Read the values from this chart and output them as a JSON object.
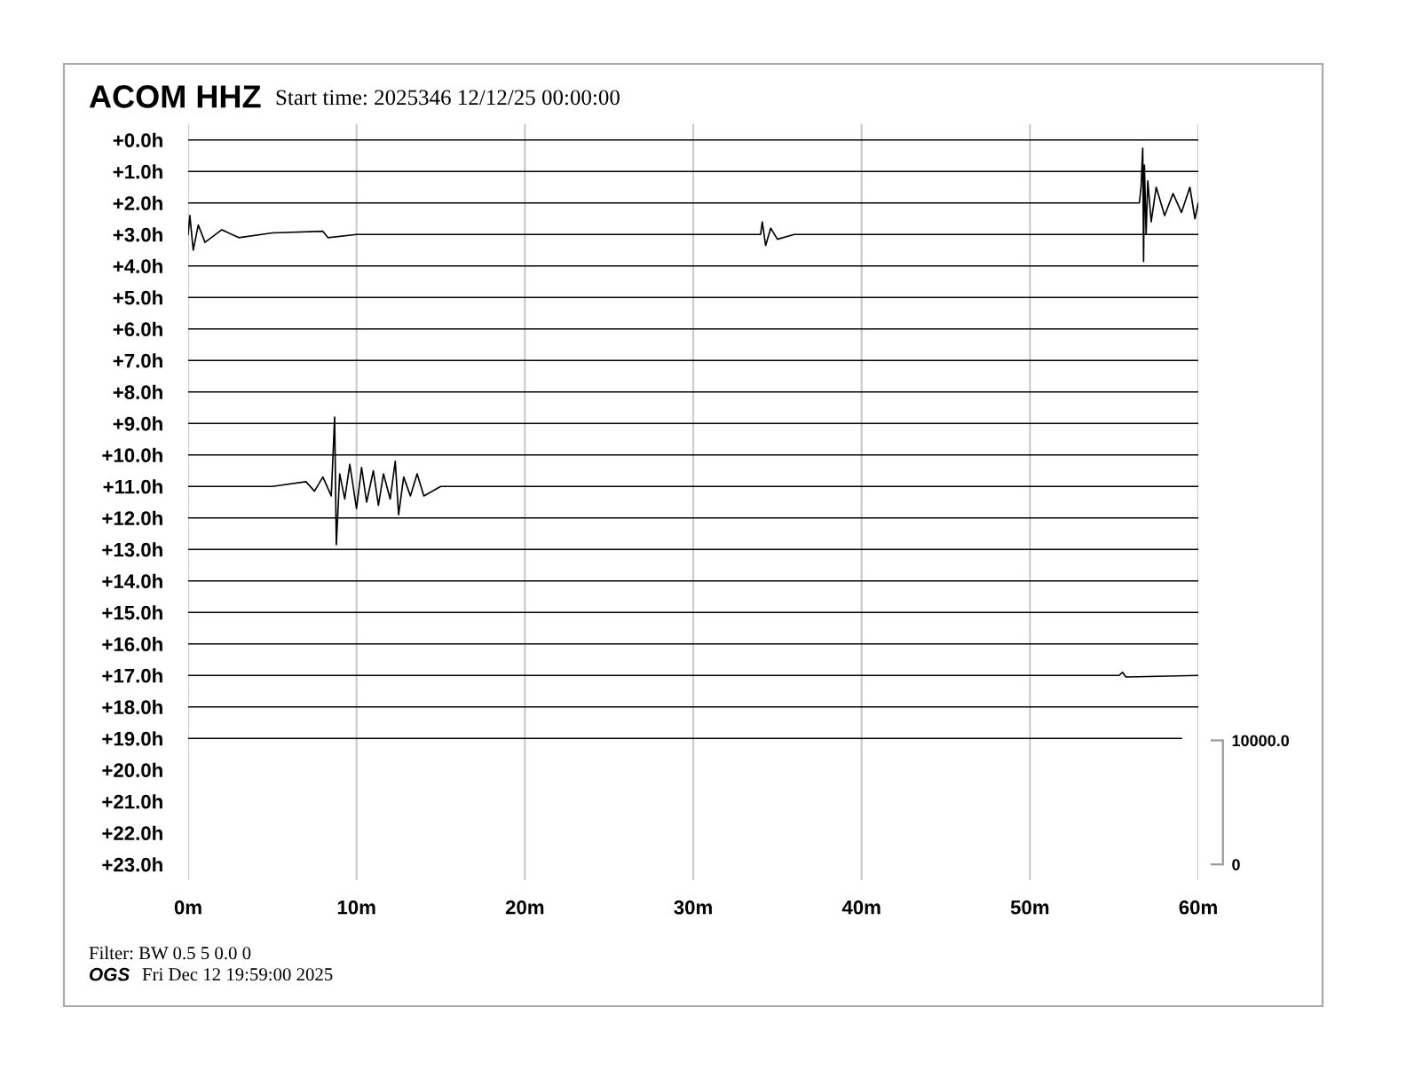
{
  "chart_data": {
    "type": "line",
    "title": "ACOM HHZ",
    "subtitle": "Start time: 2025346 12/12/25 00:00:00",
    "annotations": [
      "Filter: BW 0.5 5 0.0 0",
      "OGS",
      "Fri Dec 12 19:59:00 2025"
    ],
    "xlim": [
      0,
      60
    ],
    "xticks": [
      {
        "value": 0,
        "label": "0m"
      },
      {
        "value": 10,
        "label": "10m"
      },
      {
        "value": 20,
        "label": "20m"
      },
      {
        "value": 30,
        "label": "30m"
      },
      {
        "value": 40,
        "label": "40m"
      },
      {
        "value": 50,
        "label": "50m"
      },
      {
        "value": 60,
        "label": "60m"
      }
    ],
    "ylim": [
      23.5,
      -0.5
    ],
    "yticks": [
      {
        "value": 0,
        "label": "+0.0h"
      },
      {
        "value": 1,
        "label": "+1.0h"
      },
      {
        "value": 2,
        "label": "+2.0h"
      },
      {
        "value": 3,
        "label": "+3.0h"
      },
      {
        "value": 4,
        "label": "+4.0h"
      },
      {
        "value": 5,
        "label": "+5.0h"
      },
      {
        "value": 6,
        "label": "+6.0h"
      },
      {
        "value": 7,
        "label": "+7.0h"
      },
      {
        "value": 8,
        "label": "+8.0h"
      },
      {
        "value": 9,
        "label": "+9.0h"
      },
      {
        "value": 10,
        "label": "+10.0h"
      },
      {
        "value": 11,
        "label": "+11.0h"
      },
      {
        "value": 12,
        "label": "+12.0h"
      },
      {
        "value": 13,
        "label": "+13.0h"
      },
      {
        "value": 14,
        "label": "+14.0h"
      },
      {
        "value": 15,
        "label": "+15.0h"
      },
      {
        "value": 16,
        "label": "+16.0h"
      },
      {
        "value": 17,
        "label": "+17.0h"
      },
      {
        "value": 18,
        "label": "+18.0h"
      },
      {
        "value": 19,
        "label": "+19.0h"
      },
      {
        "value": 20,
        "label": "+20.0h"
      },
      {
        "value": 21,
        "label": "+21.0h"
      },
      {
        "value": 22,
        "label": "+22.0h"
      },
      {
        "value": 23,
        "label": "+23.0h"
      }
    ],
    "y2lim": [
      -1270,
      59690
    ],
    "y2ticks": [
      0,
      {
        "value": 10000,
        "label": "10000.0"
      }
    ],
    "grid": "x",
    "line_style": "solid",
    "marker": "none",
    "series": [
      {
        "color": "#000000",
        "x": [
          0,
          60
        ],
        "values": [
          0,
          0
        ]
      },
      {
        "color": "#000000",
        "x": [
          0,
          60
        ],
        "values": [
          1,
          1
        ]
      },
      {
        "color": "#000000",
        "x": [
          0,
          56.5,
          56.6,
          56.7,
          56.75,
          56.8,
          56.9,
          57.0,
          57.2,
          57.5,
          58,
          58.5,
          59,
          59.5,
          59.8,
          60
        ],
        "values": [
          2,
          2,
          1.5,
          0.26,
          3.86,
          0.8,
          3.0,
          1.3,
          2.6,
          1.5,
          2.4,
          1.7,
          2.3,
          1.5,
          2.5,
          2
        ]
      },
      {
        "color": "#000000",
        "x": [
          0,
          0.1,
          0.3,
          0.6,
          1,
          2,
          3,
          5,
          8,
          8.3,
          10,
          34,
          34.1,
          34.3,
          34.6,
          35,
          36,
          60
        ],
        "values": [
          3,
          2.4,
          3.5,
          2.7,
          3.25,
          2.85,
          3.1,
          2.95,
          2.9,
          3.1,
          3,
          3,
          2.6,
          3.35,
          2.8,
          3.15,
          3,
          3
        ]
      },
      {
        "color": "#000000",
        "x": [
          0,
          60
        ],
        "values": [
          4,
          4
        ]
      },
      {
        "color": "#000000",
        "x": [
          0,
          60
        ],
        "values": [
          5,
          5
        ]
      },
      {
        "color": "#000000",
        "x": [
          0,
          60
        ],
        "values": [
          6,
          6
        ]
      },
      {
        "color": "#000000",
        "x": [
          0,
          60
        ],
        "values": [
          7,
          7
        ]
      },
      {
        "color": "#000000",
        "x": [
          0,
          60
        ],
        "values": [
          8,
          8
        ]
      },
      {
        "color": "#000000",
        "x": [
          0,
          60
        ],
        "values": [
          9,
          9
        ]
      },
      {
        "color": "#000000",
        "x": [
          0,
          60
        ],
        "values": [
          10,
          10
        ]
      },
      {
        "color": "#000000",
        "x": [
          0,
          5,
          7,
          7.5,
          8,
          8.5,
          8.7,
          8.8,
          9,
          9.3,
          9.6,
          10,
          10.3,
          10.6,
          11,
          11.3,
          11.6,
          12,
          12.3,
          12.5,
          12.8,
          13.2,
          13.6,
          14,
          15,
          60
        ],
        "values": [
          11,
          11,
          10.85,
          11.15,
          10.7,
          11.3,
          8.8,
          12.85,
          10.6,
          11.4,
          10.3,
          11.7,
          10.4,
          11.5,
          10.5,
          11.6,
          10.6,
          11.4,
          10.2,
          11.9,
          10.7,
          11.3,
          10.6,
          11.3,
          11,
          11
        ]
      },
      {
        "color": "#000000",
        "x": [
          0,
          60
        ],
        "values": [
          12,
          12
        ]
      },
      {
        "color": "#000000",
        "x": [
          0,
          60
        ],
        "values": [
          13,
          13
        ]
      },
      {
        "color": "#000000",
        "x": [
          0,
          60
        ],
        "values": [
          14,
          14
        ]
      },
      {
        "color": "#000000",
        "x": [
          0,
          60
        ],
        "values": [
          15,
          15
        ]
      },
      {
        "color": "#000000",
        "x": [
          0,
          60
        ],
        "values": [
          16,
          16
        ]
      },
      {
        "color": "#000000",
        "x": [
          0,
          55.3,
          55.5,
          55.7,
          60
        ],
        "values": [
          17,
          17,
          16.9,
          17.05,
          17
        ]
      },
      {
        "color": "#000000",
        "x": [
          0,
          60
        ],
        "values": [
          18,
          18
        ]
      },
      {
        "color": "#000000",
        "x": [
          0,
          59
        ],
        "values": [
          19,
          19
        ]
      }
    ]
  }
}
